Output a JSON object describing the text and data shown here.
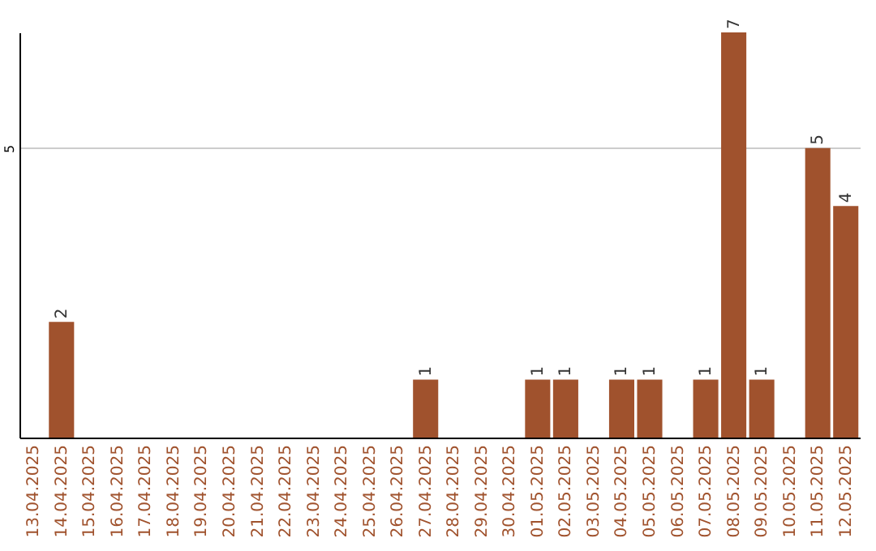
{
  "chart_data": {
    "type": "bar",
    "categories": [
      "13.04.2025",
      "14.04.2025",
      "15.04.2025",
      "16.04.2025",
      "17.04.2025",
      "18.04.2025",
      "19.04.2025",
      "20.04.2025",
      "21.04.2025",
      "22.04.2025",
      "23.04.2025",
      "24.04.2025",
      "25.04.2025",
      "26.04.2025",
      "27.04.2025",
      "28.04.2025",
      "29.04.2025",
      "30.04.2025",
      "01.05.2025",
      "02.05.2025",
      "03.05.2025",
      "04.05.2025",
      "05.05.2025",
      "06.05.2025",
      "07.05.2025",
      "08.05.2025",
      "09.05.2025",
      "10.05.2025",
      "11.05.2025",
      "12.05.2025"
    ],
    "values": [
      0,
      2,
      0,
      0,
      0,
      0,
      0,
      0,
      0,
      0,
      0,
      0,
      0,
      0,
      1,
      0,
      0,
      0,
      1,
      1,
      0,
      1,
      1,
      0,
      1,
      7,
      1,
      0,
      5,
      4
    ],
    "value_labels": [
      null,
      "2",
      null,
      null,
      null,
      null,
      null,
      null,
      null,
      null,
      null,
      null,
      null,
      null,
      "1",
      null,
      null,
      null,
      "1",
      "1",
      null,
      "1",
      "1",
      null,
      "1",
      "7",
      "1",
      null,
      "5",
      "4"
    ],
    "color": "#a0522d",
    "ylim": [
      0,
      7
    ],
    "yticks": [
      5
    ],
    "grid": "y"
  }
}
